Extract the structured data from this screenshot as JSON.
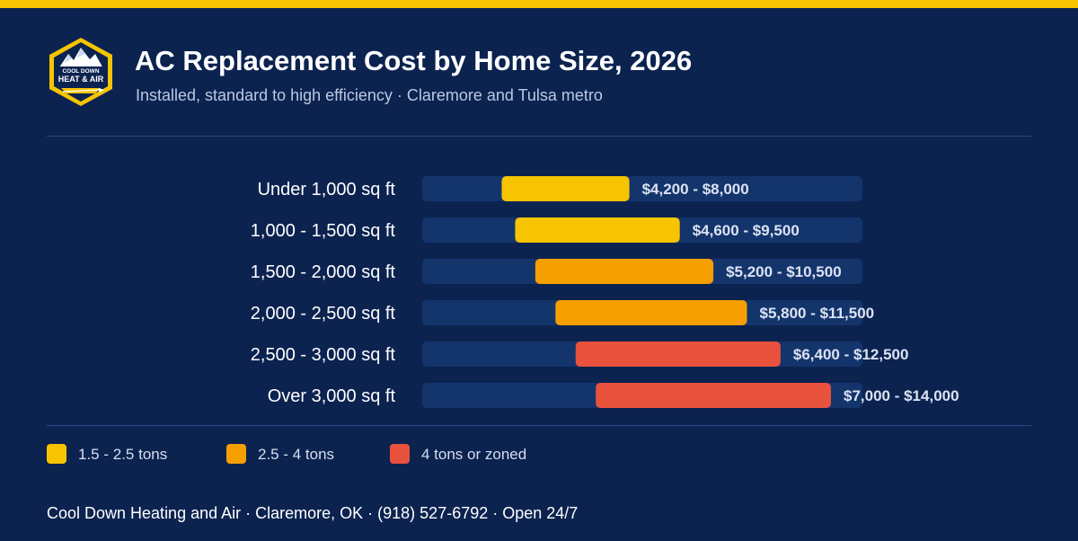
{
  "header": {
    "title": "AC Replacement Cost by Home Size, 2026",
    "subtitle": "Installed, standard to high efficiency · Claremore and Tulsa metro"
  },
  "logo": {
    "line1": "COOL DOWN",
    "line2": "HEAT & AIR"
  },
  "colors": {
    "background": "#0c2350",
    "accent": "#f6c400",
    "track": "#14346c",
    "tier1": "#f6c400",
    "tier2": "#f59f00",
    "tier3": "#e8513c"
  },
  "chart_data": {
    "type": "bar",
    "orientation": "horizontal-range",
    "xlim": [
      0,
      16000
    ],
    "categories": [
      "Under 1,000 sq ft",
      "1,000 - 1,500 sq ft",
      "1,500 - 2,000 sq ft",
      "2,000 - 2,500 sq ft",
      "2,500 - 3,000 sq ft",
      "Over 3,000 sq ft"
    ],
    "ranges": [
      {
        "low": 4200,
        "high": 8000,
        "label": "$4,200 - $8,000",
        "tier": 0
      },
      {
        "low": 4600,
        "high": 9500,
        "label": "$4,600 - $9,500",
        "tier": 0
      },
      {
        "low": 5200,
        "high": 10500,
        "label": "$5,200 - $10,500",
        "tier": 1
      },
      {
        "low": 5800,
        "high": 11500,
        "label": "$5,800 - $11,500",
        "tier": 1
      },
      {
        "low": 6400,
        "high": 12500,
        "label": "$6,400 - $12,500",
        "tier": 2
      },
      {
        "low": 7000,
        "high": 14000,
        "label": "$7,000 - $14,000",
        "tier": 2
      }
    ],
    "legend": [
      {
        "label": "1.5 - 2.5 tons",
        "color": "#f6c400"
      },
      {
        "label": "2.5 - 4 tons",
        "color": "#f59f00"
      },
      {
        "label": "4 tons or zoned",
        "color": "#e8513c"
      }
    ],
    "legend_position": "bottom-left",
    "grid": false
  },
  "footer": {
    "text": "Cool Down Heating and Air · Claremore, OK · (918) 527-6792 · Open 24/7"
  }
}
